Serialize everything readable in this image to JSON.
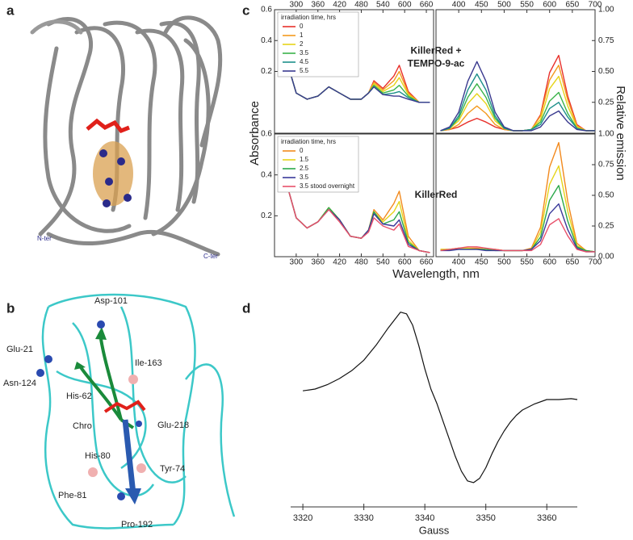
{
  "panel_labels": [
    "a",
    "b",
    "c",
    "d"
  ],
  "panel_a": {
    "labels": [
      "N-ter",
      "C-ter"
    ]
  },
  "panel_b": {
    "labels": [
      "Asp-101",
      "Glu-21",
      "Ile-163",
      "Asn-124",
      "His-62",
      "Chro",
      "Glu-218",
      "His-80",
      "Tyr-74",
      "Phe-81",
      "Pro-192"
    ]
  },
  "panel_c": {
    "y_label": "Absorbance",
    "y2_label": "Relative emission",
    "x_label": "Wavelength, nm"
  },
  "chart_data": [
    {
      "type": "line",
      "annotation": [
        "KillerRed +",
        "TEMPO-9-ac"
      ],
      "legend_title": "irradiation time, hrs",
      "legend": "upper left",
      "x": [
        250,
        270,
        300,
        330,
        360,
        390,
        420,
        450,
        480,
        500,
        515,
        540,
        570,
        585,
        610,
        640,
        670
      ],
      "xlim": [
        240,
        680
      ],
      "xticks": [
        300,
        360,
        420,
        480,
        540,
        600,
        660
      ],
      "xticks_side": "top",
      "ylim": [
        -0.2,
        0.6
      ],
      "yticks": [
        0.2,
        0.4,
        0.6
      ],
      "yticks_side": "left",
      "series": [
        {
          "name": "0",
          "color": "#e8302a",
          "values": [
            0.58,
            0.3,
            0.06,
            0.02,
            0.04,
            0.1,
            0.06,
            0.02,
            0.02,
            0.06,
            0.14,
            0.09,
            0.17,
            0.24,
            0.07,
            0.0,
            0.0
          ]
        },
        {
          "name": "1",
          "color": "#f39a1e",
          "values": [
            0.58,
            0.3,
            0.06,
            0.02,
            0.04,
            0.1,
            0.06,
            0.02,
            0.02,
            0.06,
            0.13,
            0.08,
            0.14,
            0.2,
            0.06,
            0.0,
            0.0
          ]
        },
        {
          "name": "2",
          "color": "#e6d419",
          "values": [
            0.58,
            0.3,
            0.06,
            0.02,
            0.04,
            0.1,
            0.06,
            0.02,
            0.02,
            0.06,
            0.12,
            0.07,
            0.11,
            0.16,
            0.05,
            0.0,
            0.0
          ]
        },
        {
          "name": "3.5",
          "color": "#3bb34a",
          "values": [
            0.58,
            0.3,
            0.06,
            0.02,
            0.04,
            0.1,
            0.06,
            0.02,
            0.02,
            0.06,
            0.11,
            0.06,
            0.08,
            0.11,
            0.04,
            0.0,
            0.0
          ]
        },
        {
          "name": "4.5",
          "color": "#1d8f8a",
          "values": [
            0.58,
            0.3,
            0.06,
            0.02,
            0.04,
            0.1,
            0.06,
            0.02,
            0.02,
            0.06,
            0.1,
            0.05,
            0.06,
            0.07,
            0.03,
            0.0,
            0.0
          ]
        },
        {
          "name": "5.5",
          "color": "#3a3a8f",
          "values": [
            0.58,
            0.3,
            0.06,
            0.02,
            0.04,
            0.1,
            0.06,
            0.02,
            0.02,
            0.06,
            0.1,
            0.05,
            0.04,
            0.04,
            0.02,
            0.0,
            0.0
          ]
        }
      ]
    },
    {
      "type": "line",
      "x": [
        360,
        380,
        400,
        420,
        440,
        460,
        480,
        500,
        520,
        540,
        560,
        580,
        600,
        620,
        640,
        660,
        680,
        700
      ],
      "xlim": [
        350,
        700
      ],
      "xticks": [
        400,
        450,
        500,
        550,
        600,
        650,
        700
      ],
      "xticks_side": "top",
      "ylim": [
        0,
        1
      ],
      "yticks": [
        0.25,
        {
          "value": 0.5,
          "label": "0.50"
        },
        0.75,
        {
          "value": 1,
          "label": "1.00"
        }
      ],
      "yticks_side": "right",
      "series": [
        {
          "name": "0",
          "color": "#e8302a",
          "values": [
            0.02,
            0.03,
            0.05,
            0.09,
            0.12,
            0.09,
            0.05,
            0.03,
            0.02,
            0.02,
            0.03,
            0.15,
            0.49,
            0.63,
            0.3,
            0.07,
            0.02,
            0.02
          ]
        },
        {
          "name": "1",
          "color": "#f39a1e",
          "values": [
            0.02,
            0.03,
            0.07,
            0.16,
            0.22,
            0.16,
            0.07,
            0.03,
            0.02,
            0.02,
            0.03,
            0.14,
            0.43,
            0.55,
            0.27,
            0.06,
            0.02,
            0.02
          ]
        },
        {
          "name": "2",
          "color": "#e6d419",
          "values": [
            0.02,
            0.04,
            0.1,
            0.24,
            0.32,
            0.24,
            0.1,
            0.04,
            0.02,
            0.02,
            0.03,
            0.11,
            0.36,
            0.46,
            0.22,
            0.05,
            0.02,
            0.02
          ]
        },
        {
          "name": "3.5",
          "color": "#3bb34a",
          "values": [
            0.02,
            0.04,
            0.12,
            0.29,
            0.4,
            0.29,
            0.12,
            0.04,
            0.02,
            0.02,
            0.03,
            0.09,
            0.26,
            0.33,
            0.16,
            0.04,
            0.02,
            0.02
          ]
        },
        {
          "name": "4.5",
          "color": "#1d8f8a",
          "values": [
            0.02,
            0.04,
            0.14,
            0.35,
            0.48,
            0.35,
            0.14,
            0.04,
            0.02,
            0.02,
            0.03,
            0.07,
            0.2,
            0.25,
            0.13,
            0.04,
            0.02,
            0.02
          ]
        },
        {
          "name": "5.5",
          "color": "#3a3a8f",
          "values": [
            0.02,
            0.05,
            0.17,
            0.42,
            0.58,
            0.42,
            0.17,
            0.05,
            0.02,
            0.02,
            0.02,
            0.05,
            0.14,
            0.18,
            0.09,
            0.03,
            0.02,
            0.02
          ]
        }
      ]
    },
    {
      "type": "line",
      "annotation": [
        "KillerRed"
      ],
      "legend_title": "irradiation time, hrs",
      "legend": "upper left",
      "x": [
        250,
        270,
        300,
        330,
        360,
        390,
        420,
        450,
        480,
        500,
        515,
        540,
        570,
        585,
        610,
        640,
        670
      ],
      "xlim": [
        240,
        680
      ],
      "xticks": [
        300,
        360,
        420,
        480,
        540,
        600,
        660
      ],
      "xticks_side": "bottom",
      "ylim": [
        0,
        0.6
      ],
      "yticks": [
        0.2,
        0.4,
        0.6
      ],
      "yticks_side": "left",
      "series": [
        {
          "name": "0",
          "color": "#f28a1e",
          "values": [
            0.46,
            0.38,
            0.19,
            0.14,
            0.17,
            0.24,
            0.18,
            0.1,
            0.09,
            0.13,
            0.23,
            0.18,
            0.26,
            0.32,
            0.1,
            0.03,
            0.02
          ]
        },
        {
          "name": "1.5",
          "color": "#e6d419",
          "values": [
            0.46,
            0.38,
            0.19,
            0.14,
            0.17,
            0.24,
            0.18,
            0.1,
            0.09,
            0.13,
            0.22,
            0.17,
            0.22,
            0.27,
            0.08,
            0.03,
            0.02
          ]
        },
        {
          "name": "2.5",
          "color": "#2aa84a",
          "values": [
            0.46,
            0.38,
            0.19,
            0.14,
            0.17,
            0.24,
            0.18,
            0.1,
            0.09,
            0.13,
            0.22,
            0.16,
            0.18,
            0.22,
            0.07,
            0.03,
            0.02
          ]
        },
        {
          "name": "3.5",
          "color": "#3a3a9a",
          "values": [
            0.46,
            0.38,
            0.19,
            0.14,
            0.17,
            0.23,
            0.18,
            0.1,
            0.09,
            0.13,
            0.21,
            0.16,
            0.15,
            0.18,
            0.06,
            0.03,
            0.02
          ]
        },
        {
          "name": "3.5 stood overnight",
          "color": "#e8506a",
          "values": [
            0.46,
            0.38,
            0.19,
            0.14,
            0.17,
            0.23,
            0.17,
            0.1,
            0.09,
            0.12,
            0.19,
            0.15,
            0.13,
            0.16,
            0.05,
            0.03,
            0.02
          ]
        }
      ]
    },
    {
      "type": "line",
      "x": [
        360,
        380,
        400,
        420,
        440,
        460,
        480,
        500,
        520,
        540,
        560,
        580,
        600,
        620,
        640,
        660,
        680,
        700
      ],
      "xlim": [
        350,
        700
      ],
      "xticks": [
        400,
        450,
        500,
        550,
        600,
        650,
        700
      ],
      "xticks_side": "bottom",
      "ylim": [
        0,
        1
      ],
      "yticks": [
        {
          "value": 0,
          "label": "0.00"
        },
        0.25,
        {
          "value": 0.5,
          "label": "0.50"
        },
        0.75,
        {
          "value": 1,
          "label": "1.00"
        }
      ],
      "yticks_side": "right",
      "series": [
        {
          "name": "0",
          "color": "#f28a1e",
          "values": [
            0.06,
            0.06,
            0.07,
            0.07,
            0.07,
            0.06,
            0.06,
            0.05,
            0.05,
            0.05,
            0.07,
            0.24,
            0.73,
            0.93,
            0.45,
            0.11,
            0.05,
            0.04
          ]
        },
        {
          "name": "1.5",
          "color": "#e6d419",
          "values": [
            0.06,
            0.06,
            0.07,
            0.07,
            0.06,
            0.06,
            0.06,
            0.05,
            0.05,
            0.05,
            0.06,
            0.2,
            0.59,
            0.74,
            0.37,
            0.09,
            0.05,
            0.04
          ]
        },
        {
          "name": "2.5",
          "color": "#2aa84a",
          "values": [
            0.05,
            0.06,
            0.06,
            0.06,
            0.06,
            0.06,
            0.05,
            0.05,
            0.05,
            0.05,
            0.06,
            0.16,
            0.46,
            0.58,
            0.29,
            0.08,
            0.05,
            0.04
          ]
        },
        {
          "name": "3.5",
          "color": "#3a3a9a",
          "values": [
            0.05,
            0.05,
            0.06,
            0.06,
            0.06,
            0.05,
            0.05,
            0.05,
            0.05,
            0.05,
            0.06,
            0.13,
            0.35,
            0.43,
            0.22,
            0.07,
            0.04,
            0.04
          ]
        },
        {
          "name": "3.5 stood overnight",
          "color": "#e8506a",
          "values": [
            0.05,
            0.06,
            0.07,
            0.08,
            0.08,
            0.07,
            0.06,
            0.05,
            0.05,
            0.05,
            0.05,
            0.1,
            0.26,
            0.31,
            0.17,
            0.06,
            0.04,
            0.04
          ]
        }
      ]
    },
    {
      "type": "line",
      "x_label": "Gauss",
      "x": [
        3320,
        3322,
        3324,
        3326,
        3328,
        3330,
        3332,
        3334,
        3336,
        3337,
        3338,
        3339,
        3340,
        3341,
        3342,
        3343,
        3344,
        3345,
        3346,
        3347,
        3348,
        3349,
        3350,
        3351,
        3352,
        3353,
        3354,
        3355,
        3356,
        3358,
        3360,
        3362,
        3364,
        3365
      ],
      "xlim": [
        3318,
        3365
      ],
      "xticks": [
        3320,
        3330,
        3340,
        3350,
        3360
      ],
      "xticks_side": "bottom",
      "ylim": [
        -1.2,
        1.2
      ],
      "series": [
        {
          "color": "#111111",
          "values": [
            0.1,
            0.12,
            0.17,
            0.24,
            0.33,
            0.45,
            0.62,
            0.82,
            1.0,
            0.98,
            0.85,
            0.62,
            0.35,
            0.12,
            -0.05,
            -0.25,
            -0.45,
            -0.65,
            -0.82,
            -0.93,
            -0.95,
            -0.9,
            -0.78,
            -0.62,
            -0.48,
            -0.36,
            -0.26,
            -0.18,
            -0.12,
            -0.05,
            0.0,
            0.0,
            0.01,
            0.0
          ]
        }
      ]
    }
  ]
}
